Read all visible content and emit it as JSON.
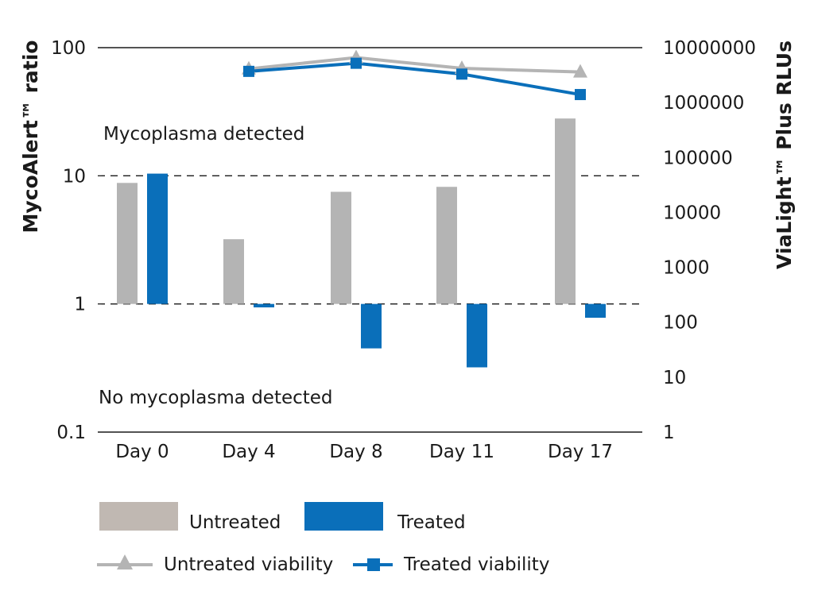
{
  "chart_data": {
    "type": "bar",
    "categories": [
      "Day 0",
      "Day 4",
      "Day 8",
      "Day 11",
      "Day 17"
    ],
    "left_axis": {
      "label": "MycoAlert™ ratio",
      "scale": "log",
      "ylim": [
        0.1,
        100
      ],
      "ticks": [
        0.1,
        1,
        10,
        100
      ],
      "tick_labels": [
        "0.1",
        "1",
        "10",
        "100"
      ]
    },
    "right_axis": {
      "label": "ViaLight™ Plus RLUs",
      "scale": "log",
      "ylim": [
        1,
        10000000
      ],
      "ticks": [
        1,
        10,
        100,
        1000,
        10000,
        100000,
        1000000,
        10000000
      ],
      "tick_labels": [
        "1",
        "10",
        "100",
        "1000",
        "10000",
        "100000",
        "1000000",
        "10000000"
      ]
    },
    "bar_series": [
      {
        "name": "Untreated",
        "color": "#b4b4b4",
        "values": [
          8.8,
          3.2,
          7.5,
          8.2,
          28
        ]
      },
      {
        "name": "Treated",
        "color": "#0a6fba",
        "values": [
          10.4,
          0.94,
          0.45,
          0.32,
          0.78
        ]
      }
    ],
    "line_series": [
      {
        "name": "Untreated viability",
        "color": "#b4b4b4",
        "marker": "triangle",
        "x_index": [
          1,
          2,
          3,
          4
        ],
        "values": [
          4100000,
          6600000,
          4200000,
          3600000
        ]
      },
      {
        "name": "Treated viability",
        "color": "#0a6fba",
        "marker": "square",
        "x_index": [
          1,
          2,
          3,
          4
        ],
        "values": [
          3700000,
          5200000,
          3300000,
          1400000
        ]
      }
    ],
    "reference_lines": [
      1,
      10
    ],
    "annotations": [
      "Mycoplasma detected",
      "No mycoplasma detected"
    ]
  },
  "legend": {
    "untreated_label": "Untreated",
    "treated_label": "Treated",
    "untreated_viability_label": "Untreated viability",
    "treated_viability_label": "Treated viability",
    "untreated_color": "#c0b8b2",
    "treated_color": "#0a6fba",
    "line_gray": "#b4b4b4"
  }
}
